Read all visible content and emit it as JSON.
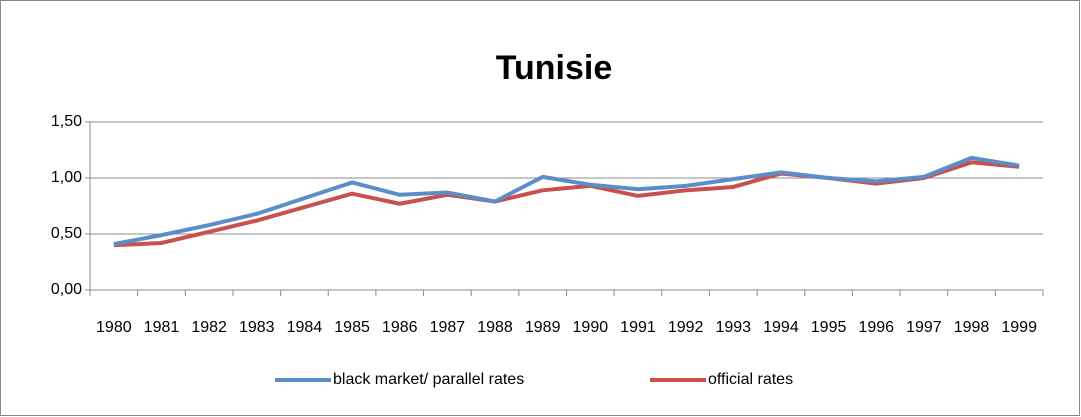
{
  "chart_data": {
    "type": "line",
    "title": "Tunisie",
    "categories": [
      "1980",
      "1981",
      "1982",
      "1983",
      "1984",
      "1985",
      "1986",
      "1987",
      "1988",
      "1989",
      "1990",
      "1991",
      "1992",
      "1993",
      "1994",
      "1995",
      "1996",
      "1997",
      "1998",
      "1999"
    ],
    "series": [
      {
        "name": "black market/ parallel rates",
        "color": "#5b8ec9",
        "values": [
          0.41,
          0.49,
          0.58,
          0.68,
          0.82,
          0.96,
          0.85,
          0.87,
          0.79,
          1.01,
          0.94,
          0.9,
          0.93,
          0.99,
          1.05,
          1.0,
          0.97,
          1.01,
          1.18,
          1.11
        ]
      },
      {
        "name": "official rates",
        "color": "#c9504c",
        "values": [
          0.4,
          0.42,
          0.52,
          0.62,
          0.74,
          0.86,
          0.77,
          0.85,
          0.79,
          0.89,
          0.93,
          0.84,
          0.89,
          0.92,
          1.04,
          1.0,
          0.95,
          1.0,
          1.14,
          1.1
        ]
      }
    ],
    "ylim": [
      0,
      1.5
    ],
    "yticks": [
      {
        "value": 0,
        "label": "0,00"
      },
      {
        "value": 0.5,
        "label": "0,50"
      },
      {
        "value": 1,
        "label": "1,00"
      },
      {
        "value": 1.5,
        "label": "1,50"
      }
    ],
    "grid": true,
    "legend": "bottom"
  }
}
